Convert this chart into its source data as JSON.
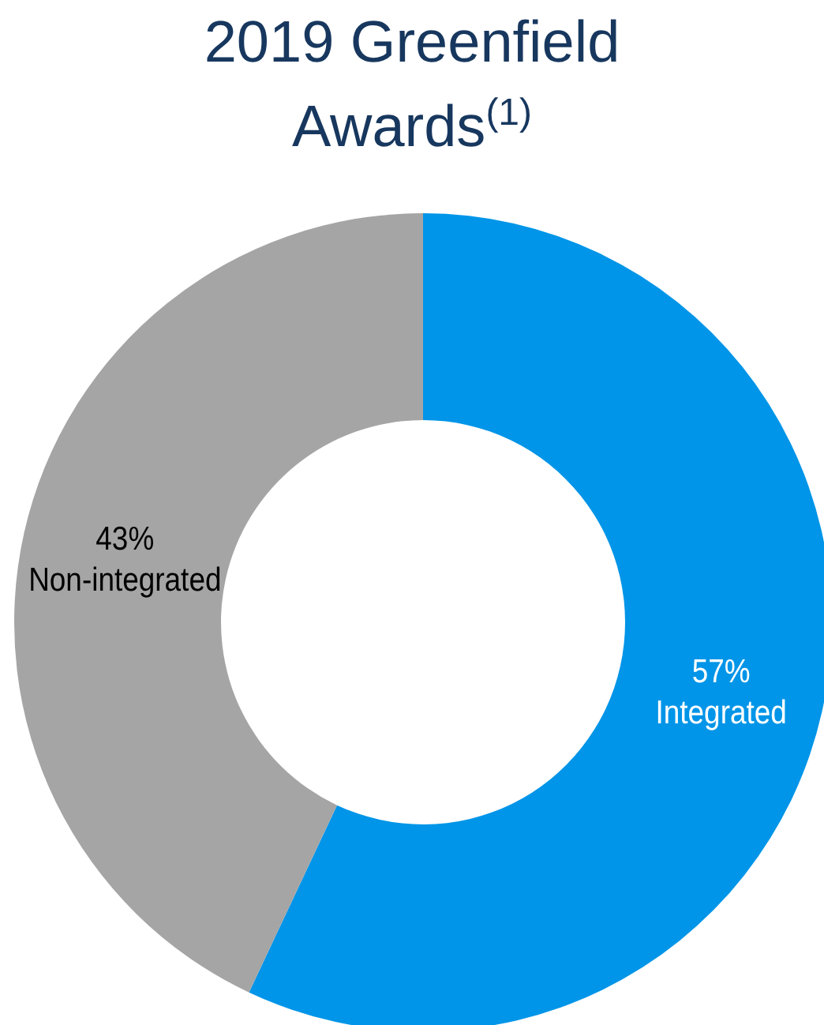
{
  "chart_data": {
    "type": "donut",
    "title": "2019 Greenfield Awards$^{(1)}$",
    "categories": [
      "Integrated",
      "Non-integrated"
    ],
    "values": [
      57,
      43
    ],
    "colors": [
      "#0095e8",
      "#a5a5a5"
    ],
    "value_labels": [
      "57%",
      "43%"
    ],
    "legend": false
  }
}
